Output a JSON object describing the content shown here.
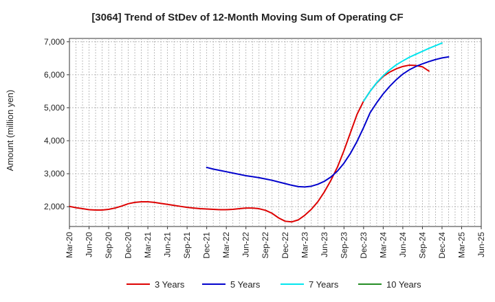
{
  "chart_data": {
    "type": "line",
    "title": "[3064]  Trend of StDev of 12-Month Moving Sum of Operating CF",
    "xlabel": "",
    "ylabel": "Amount (million yen)",
    "ylim": [
      1400,
      7100
    ],
    "yticks": [
      2000,
      3000,
      4000,
      5000,
      6000,
      7000
    ],
    "ytick_labels": [
      "2,000",
      "3,000",
      "4,000",
      "5,000",
      "6,000",
      "7,000"
    ],
    "x_tick_labels": [
      "Mar-20",
      "Jun-20",
      "Sep-20",
      "Dec-20",
      "Mar-21",
      "Jun-21",
      "Sep-21",
      "Dec-21",
      "Mar-22",
      "Jun-22",
      "Sep-22",
      "Dec-22",
      "Mar-23",
      "Jun-23",
      "Sep-23",
      "Dec-23",
      "Mar-24",
      "Jun-24",
      "Sep-24",
      "Dec-24",
      "Mar-25",
      "Jun-25"
    ],
    "grid": true,
    "legend_position": "bottom",
    "series": [
      {
        "name": "3 Years",
        "color": "#dd0000",
        "start_index": 0,
        "values": [
          2010,
          1970,
          1940,
          1910,
          1900,
          1900,
          1920,
          1960,
          2020,
          2090,
          2130,
          2150,
          2150,
          2130,
          2100,
          2070,
          2040,
          2010,
          1980,
          1960,
          1940,
          1930,
          1920,
          1910,
          1910,
          1920,
          1940,
          1960,
          1960,
          1940,
          1890,
          1800,
          1660,
          1560,
          1540,
          1600,
          1740,
          1920,
          2150,
          2450,
          2800,
          3200,
          3700,
          4250,
          4800,
          5200,
          5500,
          5750,
          5950,
          6080,
          6180,
          6250,
          6290,
          6280,
          6240,
          6110
        ]
      },
      {
        "name": "5 Years",
        "color": "#0000cc",
        "start_index": 21,
        "values": [
          3190,
          3140,
          3100,
          3060,
          3020,
          2980,
          2940,
          2910,
          2880,
          2840,
          2800,
          2750,
          2700,
          2650,
          2610,
          2600,
          2620,
          2680,
          2770,
          2900,
          3080,
          3320,
          3620,
          3980,
          4400,
          4850,
          5150,
          5420,
          5650,
          5850,
          6020,
          6150,
          6250,
          6330,
          6400,
          6460,
          6510,
          6540
        ]
      },
      {
        "name": "7 Years",
        "color": "#00e5ee",
        "start_index": 45,
        "values": [
          5200,
          5500,
          5760,
          5970,
          6150,
          6300,
          6420,
          6530,
          6620,
          6710,
          6800,
          6880,
          6960
        ]
      },
      {
        "name": "10 Years",
        "color": "#228b22",
        "start_index": 0,
        "values": []
      }
    ]
  }
}
